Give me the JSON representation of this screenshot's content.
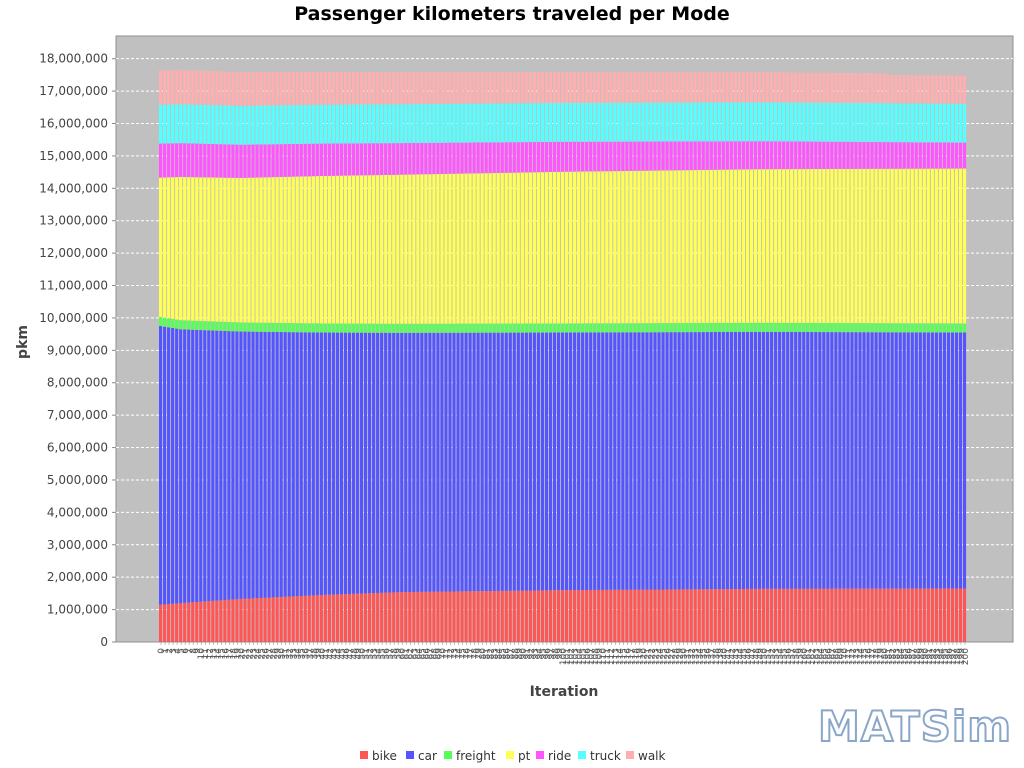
{
  "chart_data": {
    "type": "bar",
    "stacked": true,
    "title": "Passenger kilometers traveled per Mode",
    "xlabel": "Iteration",
    "ylabel": "pkm",
    "ylim": [
      0,
      18700000
    ],
    "yticks": [
      "0",
      "1,000,000",
      "2,000,000",
      "3,000,000",
      "4,000,000",
      "5,000,000",
      "6,000,000",
      "7,000,000",
      "8,000,000",
      "9,000,000",
      "10,000,000",
      "11,000,000",
      "12,000,000",
      "13,000,000",
      "14,000,000",
      "15,000,000",
      "16,000,000",
      "17,000,000",
      "18,000,000"
    ],
    "ytick_values": [
      0,
      1000000,
      2000000,
      3000000,
      4000000,
      5000000,
      6000000,
      7000000,
      8000000,
      9000000,
      10000000,
      11000000,
      12000000,
      13000000,
      14000000,
      15000000,
      16000000,
      17000000,
      18000000
    ],
    "x": {
      "start": 0,
      "end": 200,
      "step": 1
    },
    "grid": true,
    "legend_position": "bottom",
    "background": "#c0c0c0",
    "series_keypoints": {
      "description_of_format": "[iteration, value]",
      "bike": [
        [
          0,
          1150000
        ],
        [
          5,
          1200000
        ],
        [
          20,
          1330000
        ],
        [
          40,
          1450000
        ],
        [
          60,
          1540000
        ],
        [
          100,
          1600000
        ],
        [
          150,
          1640000
        ],
        [
          200,
          1650000
        ]
      ],
      "car": [
        [
          0,
          8600000
        ],
        [
          5,
          8450000
        ],
        [
          20,
          8250000
        ],
        [
          40,
          8100000
        ],
        [
          60,
          8000000
        ],
        [
          100,
          7950000
        ],
        [
          150,
          7930000
        ],
        [
          200,
          7900000
        ]
      ],
      "freight": [
        [
          0,
          280000
        ],
        [
          200,
          280000
        ]
      ],
      "pt": [
        [
          0,
          4300000
        ],
        [
          5,
          4420000
        ],
        [
          20,
          4460000
        ],
        [
          40,
          4550000
        ],
        [
          60,
          4600000
        ],
        [
          100,
          4680000
        ],
        [
          150,
          4740000
        ],
        [
          200,
          4780000
        ]
      ],
      "ride": [
        [
          0,
          1050000
        ],
        [
          200,
          800000
        ]
      ],
      "truck": [
        [
          0,
          1200000
        ],
        [
          200,
          1200000
        ]
      ],
      "walk": [
        [
          0,
          1070000
        ],
        [
          50,
          1000000
        ],
        [
          100,
          950000
        ],
        [
          180,
          920000
        ],
        [
          181,
          870000
        ],
        [
          200,
          870000
        ]
      ]
    },
    "series": [
      {
        "name": "bike",
        "color": "#ff5555"
      },
      {
        "name": "car",
        "color": "#5555ff"
      },
      {
        "name": "freight",
        "color": "#55ff55"
      },
      {
        "name": "pt",
        "color": "#ffff55"
      },
      {
        "name": "ride",
        "color": "#ff55ff"
      },
      {
        "name": "truck",
        "color": "#55ffff"
      },
      {
        "name": "walk",
        "color": "#ffafaf"
      }
    ]
  },
  "logo": {
    "text": "MATSim",
    "icon": "matsim-logo"
  }
}
